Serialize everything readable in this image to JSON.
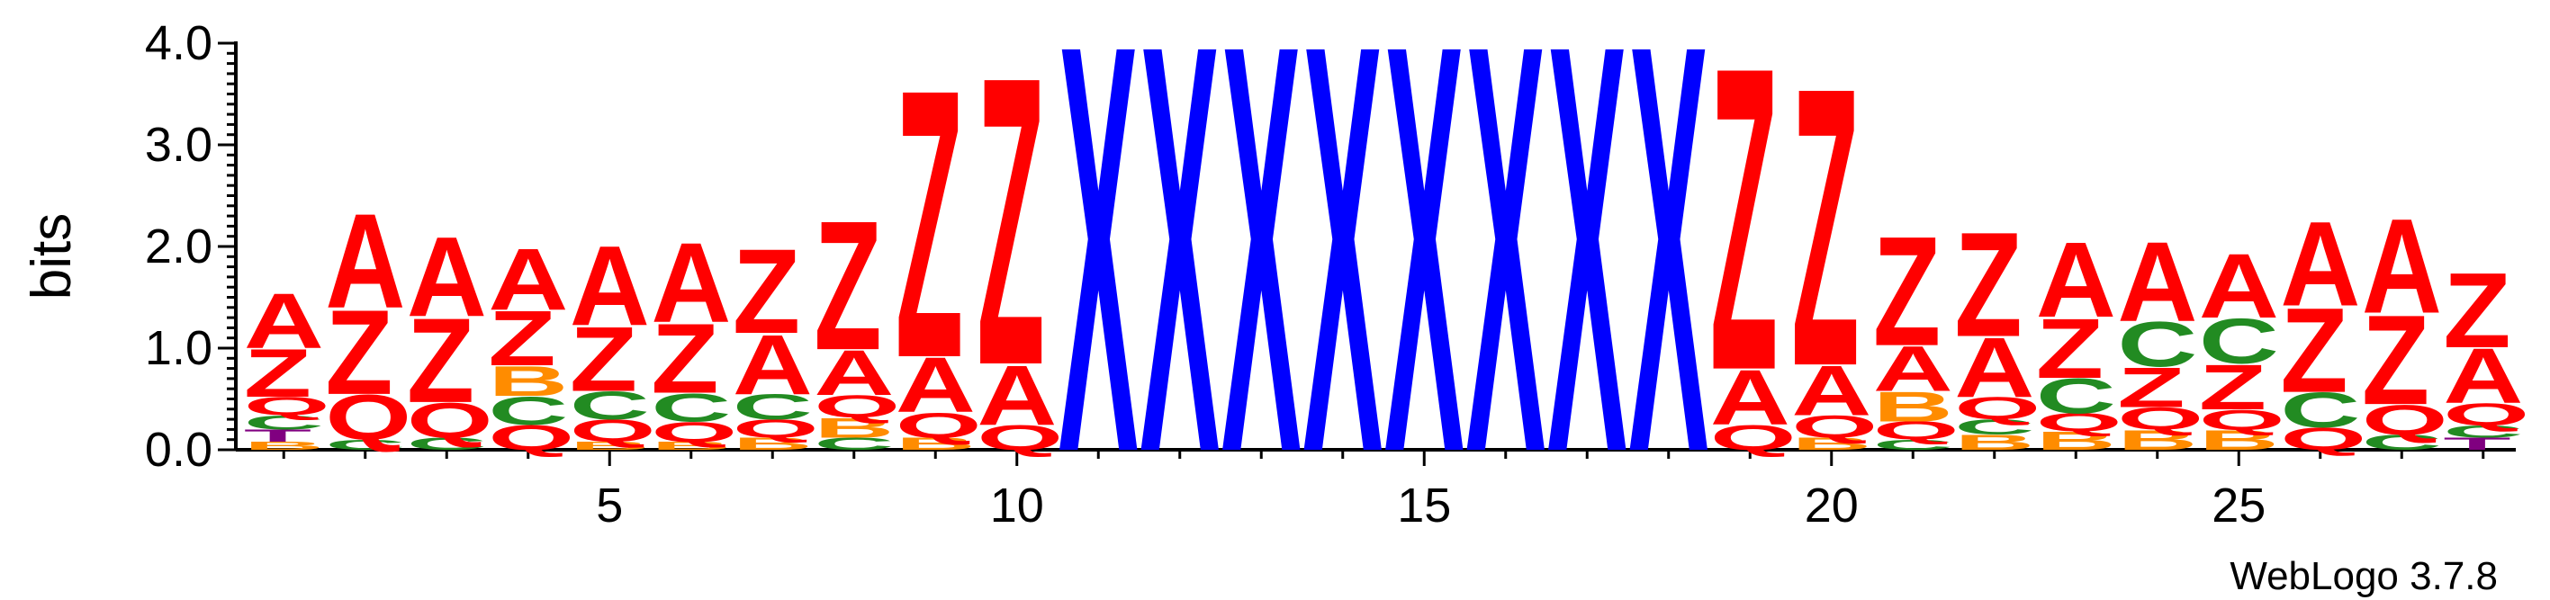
{
  "chart_data": {
    "type": "sequence-logo",
    "ylabel": "bits",
    "ylim": [
      0,
      4.0
    ],
    "yticks": [
      "0.0",
      "1.0",
      "2.0",
      "3.0",
      "4.0"
    ],
    "xticks": [
      5,
      10,
      15,
      20,
      25
    ],
    "footer": "WebLogo 3.7.8",
    "colors": {
      "A": "#ff0000",
      "Z": "#ff0000",
      "Q": "#ff0000",
      "X": "#0000ff",
      "C": "#228b22",
      "B": "#ff8c00",
      "T": "#800080"
    },
    "positions": [
      {
        "pos": 1,
        "stack": [
          [
            "B",
            0.08
          ],
          [
            "T",
            0.12
          ],
          [
            "C",
            0.14
          ],
          [
            "Q",
            0.18
          ],
          [
            "Z",
            0.48
          ],
          [
            "A",
            0.55
          ]
        ]
      },
      {
        "pos": 2,
        "stack": [
          [
            "C",
            0.1
          ],
          [
            "Q",
            0.45
          ],
          [
            "Z",
            0.85
          ],
          [
            "A",
            0.95
          ]
        ]
      },
      {
        "pos": 3,
        "stack": [
          [
            "C",
            0.12
          ],
          [
            "Q",
            0.35
          ],
          [
            "Z",
            0.85
          ],
          [
            "A",
            0.8
          ]
        ]
      },
      {
        "pos": 4,
        "stack": [
          [
            "Q",
            0.25
          ],
          [
            "C",
            0.28
          ],
          [
            "B",
            0.3
          ],
          [
            "Z",
            0.55
          ],
          [
            "A",
            0.62
          ]
        ]
      },
      {
        "pos": 5,
        "stack": [
          [
            "B",
            0.08
          ],
          [
            "Q",
            0.22
          ],
          [
            "C",
            0.28
          ],
          [
            "Z",
            0.65
          ],
          [
            "A",
            0.8
          ]
        ]
      },
      {
        "pos": 6,
        "stack": [
          [
            "B",
            0.08
          ],
          [
            "Q",
            0.2
          ],
          [
            "C",
            0.28
          ],
          [
            "Z",
            0.7
          ],
          [
            "A",
            0.8
          ]
        ]
      },
      {
        "pos": 7,
        "stack": [
          [
            "B",
            0.12
          ],
          [
            "Q",
            0.18
          ],
          [
            "C",
            0.25
          ],
          [
            "A",
            0.6
          ],
          [
            "Z",
            0.85
          ]
        ]
      },
      {
        "pos": 8,
        "stack": [
          [
            "C",
            0.12
          ],
          [
            "B",
            0.2
          ],
          [
            "Q",
            0.22
          ],
          [
            "A",
            0.45
          ],
          [
            "Z",
            1.3
          ]
        ]
      },
      {
        "pos": 9,
        "stack": [
          [
            "B",
            0.12
          ],
          [
            "Q",
            0.25
          ],
          [
            "A",
            0.55
          ],
          [
            "Z",
            2.7
          ]
        ]
      },
      {
        "pos": 10,
        "stack": [
          [
            "Q",
            0.25
          ],
          [
            "A",
            0.6
          ],
          [
            "Z",
            2.9
          ]
        ]
      },
      {
        "pos": 11,
        "stack": [
          [
            "X",
            4.1
          ]
        ]
      },
      {
        "pos": 12,
        "stack": [
          [
            "X",
            4.1
          ]
        ]
      },
      {
        "pos": 13,
        "stack": [
          [
            "X",
            4.1
          ]
        ]
      },
      {
        "pos": 14,
        "stack": [
          [
            "X",
            4.1
          ]
        ]
      },
      {
        "pos": 15,
        "stack": [
          [
            "X",
            4.1
          ]
        ]
      },
      {
        "pos": 16,
        "stack": [
          [
            "X",
            4.1
          ]
        ]
      },
      {
        "pos": 17,
        "stack": [
          [
            "X",
            4.1
          ]
        ]
      },
      {
        "pos": 18,
        "stack": [
          [
            "X",
            4.1
          ]
        ]
      },
      {
        "pos": 19,
        "stack": [
          [
            "Q",
            0.25
          ],
          [
            "A",
            0.55
          ],
          [
            "Z",
            3.05
          ]
        ]
      },
      {
        "pos": 20,
        "stack": [
          [
            "B",
            0.12
          ],
          [
            "Q",
            0.22
          ],
          [
            "A",
            0.5
          ],
          [
            "Z",
            2.8
          ]
        ]
      },
      {
        "pos": 21,
        "stack": [
          [
            "C",
            0.1
          ],
          [
            "Q",
            0.18
          ],
          [
            "B",
            0.3
          ],
          [
            "A",
            0.45
          ],
          [
            "Z",
            1.1
          ]
        ]
      },
      {
        "pos": 22,
        "stack": [
          [
            "B",
            0.15
          ],
          [
            "C",
            0.15
          ],
          [
            "Q",
            0.22
          ],
          [
            "A",
            0.6
          ],
          [
            "Z",
            1.05
          ]
        ]
      },
      {
        "pos": 23,
        "stack": [
          [
            "B",
            0.18
          ],
          [
            "Q",
            0.18
          ],
          [
            "C",
            0.35
          ],
          [
            "Z",
            0.6
          ],
          [
            "A",
            0.75
          ]
        ]
      },
      {
        "pos": 24,
        "stack": [
          [
            "B",
            0.2
          ],
          [
            "Q",
            0.22
          ],
          [
            "Z",
            0.4
          ],
          [
            "C",
            0.45
          ],
          [
            "A",
            0.8
          ]
        ]
      },
      {
        "pos": 25,
        "stack": [
          [
            "B",
            0.2
          ],
          [
            "Q",
            0.2
          ],
          [
            "Z",
            0.45
          ],
          [
            "C",
            0.45
          ],
          [
            "A",
            0.65
          ]
        ]
      },
      {
        "pos": 26,
        "stack": [
          [
            "Q",
            0.22
          ],
          [
            "C",
            0.35
          ],
          [
            "Z",
            0.85
          ],
          [
            "A",
            0.85
          ]
        ]
      },
      {
        "pos": 27,
        "stack": [
          [
            "C",
            0.15
          ],
          [
            "Q",
            0.3
          ],
          [
            "Z",
            0.9
          ],
          [
            "A",
            0.95
          ]
        ]
      },
      {
        "pos": 28,
        "stack": [
          [
            "T",
            0.12
          ],
          [
            "C",
            0.12
          ],
          [
            "Q",
            0.22
          ],
          [
            "A",
            0.55
          ],
          [
            "Z",
            0.75
          ]
        ]
      }
    ]
  }
}
